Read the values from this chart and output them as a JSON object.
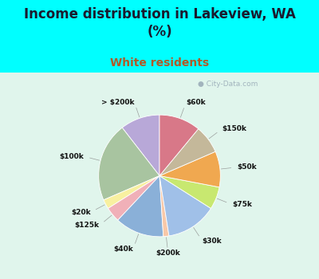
{
  "title": "Income distribution in Lakeview, WA\n(%)",
  "subtitle": "White residents",
  "labels": [
    "> $200k",
    "$100k",
    "$20k",
    "$125k",
    "$40k",
    "$200k",
    "$30k",
    "$75k",
    "$50k",
    "$150k",
    "$60k"
  ],
  "sizes": [
    10.5,
    21.0,
    2.5,
    4.0,
    13.0,
    1.5,
    13.5,
    6.0,
    9.5,
    7.5,
    11.0
  ],
  "colors": [
    "#b8a8d8",
    "#a8c4a0",
    "#f8f0a0",
    "#f0b0b8",
    "#8ab0d8",
    "#f8c8a8",
    "#a0c0e8",
    "#c8e870",
    "#f0a850",
    "#c4b89a",
    "#d87888"
  ],
  "bg_top": "#00ffff",
  "bg_chart": "#e0f5ec",
  "title_color": "#1a1a2e",
  "subtitle_color": "#b05a28",
  "label_color": "#111111",
  "watermark": "City-Data.com",
  "startangle": 90,
  "title_fontsize": 12,
  "subtitle_fontsize": 10,
  "label_fontsize": 6.5
}
